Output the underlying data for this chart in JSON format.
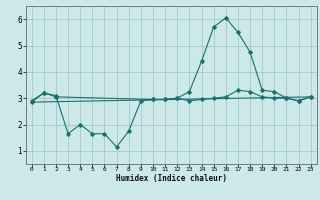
{
  "title": "",
  "xlabel": "Humidex (Indice chaleur)",
  "background_color": "#cce8e8",
  "grid_color": "#aacccc",
  "line_color": "#1a7070",
  "xlim": [
    -0.5,
    23.5
  ],
  "ylim": [
    0.5,
    6.5
  ],
  "xticks": [
    0,
    1,
    2,
    3,
    4,
    5,
    6,
    7,
    8,
    9,
    10,
    11,
    12,
    13,
    14,
    15,
    16,
    17,
    18,
    19,
    20,
    21,
    22,
    23
  ],
  "yticks": [
    1,
    2,
    3,
    4,
    5,
    6
  ],
  "line1_x": [
    0,
    1,
    2,
    3,
    4,
    5,
    6,
    7,
    8,
    9,
    10,
    11,
    12,
    13,
    14,
    15,
    16,
    17,
    18,
    19,
    20,
    21,
    22,
    23
  ],
  "line1_y": [
    2.85,
    3.2,
    3.1,
    1.65,
    2.0,
    1.65,
    1.65,
    1.15,
    1.75,
    2.9,
    2.95,
    2.95,
    3.0,
    3.25,
    4.4,
    5.7,
    6.05,
    5.5,
    4.75,
    3.3,
    3.25,
    3.0,
    2.9,
    3.05
  ],
  "line2_x": [
    0,
    1,
    2,
    10,
    11,
    12,
    13,
    14,
    15,
    16,
    17,
    18,
    19,
    20,
    21,
    22,
    23
  ],
  "line2_y": [
    2.9,
    3.2,
    3.05,
    2.95,
    2.95,
    3.0,
    2.9,
    2.95,
    3.0,
    3.05,
    3.3,
    3.25,
    3.05,
    3.0,
    3.0,
    2.9,
    3.05
  ],
  "line3_x": [
    0,
    23
  ],
  "line3_y": [
    2.85,
    3.05
  ]
}
